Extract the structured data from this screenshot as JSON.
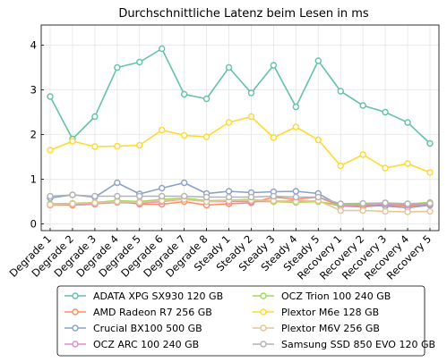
{
  "chart_data": {
    "type": "line",
    "title": "Durchschnittliche Latenz beim Lesen in ms",
    "xlabel": "",
    "ylabel": "",
    "categories": [
      "Degrade 1",
      "Degrade 2",
      "Degrade 3",
      "Degrade 4",
      "Degrade 5",
      "Degrade 6",
      "Degrade 7",
      "Degrade 8",
      "Steady 1",
      "Steady 2",
      "Steady 3",
      "Steady 4",
      "Steady 5",
      "Recovery 1",
      "Recovery 2",
      "Recovery 3",
      "Recovery 4",
      "Recovery 5"
    ],
    "ylim": [
      -0.15,
      4.45
    ],
    "yticks": [
      0,
      1,
      2,
      3,
      4
    ],
    "grid": true,
    "legend_position": "bottom",
    "series": [
      {
        "name": "ADATA XPG SX930 120 GB",
        "color": "#66c2a5",
        "values": [
          2.85,
          1.9,
          2.4,
          3.5,
          3.62,
          3.92,
          2.9,
          2.8,
          3.5,
          2.93,
          3.55,
          2.62,
          3.65,
          2.97,
          2.65,
          2.5,
          2.27,
          1.8
        ]
      },
      {
        "name": "AMD Radeon R7 256 GB",
        "color": "#fc8d62",
        "values": [
          0.42,
          0.42,
          0.44,
          0.52,
          0.44,
          0.44,
          0.5,
          0.42,
          0.45,
          0.47,
          0.6,
          0.55,
          0.6,
          0.4,
          0.38,
          0.42,
          0.4,
          0.42
        ]
      },
      {
        "name": "Crucial BX100 500 GB",
        "color": "#8da0cb",
        "values": [
          0.58,
          0.65,
          0.6,
          0.92,
          0.67,
          0.8,
          0.92,
          0.68,
          0.73,
          0.7,
          0.72,
          0.73,
          0.68,
          0.4,
          0.42,
          0.4,
          0.36,
          0.42
        ]
      },
      {
        "name": "OCZ ARC 100 240 GB",
        "color": "#e78ac3",
        "values": [
          0.42,
          0.44,
          0.45,
          0.48,
          0.46,
          0.5,
          0.55,
          0.5,
          0.5,
          0.5,
          0.5,
          0.52,
          0.5,
          0.4,
          0.42,
          0.44,
          0.42,
          0.44
        ]
      },
      {
        "name": "OCZ Trion 100 240 GB",
        "color": "#a6d854",
        "values": [
          0.45,
          0.46,
          0.48,
          0.52,
          0.5,
          0.55,
          0.58,
          0.52,
          0.53,
          0.55,
          0.5,
          0.48,
          0.5,
          0.42,
          0.45,
          0.47,
          0.45,
          0.48
        ]
      },
      {
        "name": "Plextor M6e 128 GB",
        "color": "#ffd92f",
        "values": [
          1.65,
          1.85,
          1.73,
          1.74,
          1.76,
          2.1,
          1.98,
          1.95,
          2.27,
          2.4,
          1.93,
          2.17,
          1.88,
          1.3,
          1.55,
          1.25,
          1.35,
          1.15
        ]
      },
      {
        "name": "Plextor M6V 256 GB",
        "color": "#e5c494",
        "values": [
          0.43,
          0.45,
          0.47,
          0.5,
          0.48,
          0.52,
          0.55,
          0.5,
          0.52,
          0.53,
          0.52,
          0.5,
          0.52,
          0.3,
          0.3,
          0.28,
          0.27,
          0.28
        ]
      },
      {
        "name": "Samsung SSD 850 EVO 120 GB",
        "color": "#b3b3b3",
        "values": [
          0.62,
          0.65,
          0.62,
          0.62,
          0.62,
          0.62,
          0.62,
          0.6,
          0.6,
          0.6,
          0.62,
          0.6,
          0.6,
          0.45,
          0.46,
          0.47,
          0.45,
          0.46
        ]
      }
    ]
  }
}
